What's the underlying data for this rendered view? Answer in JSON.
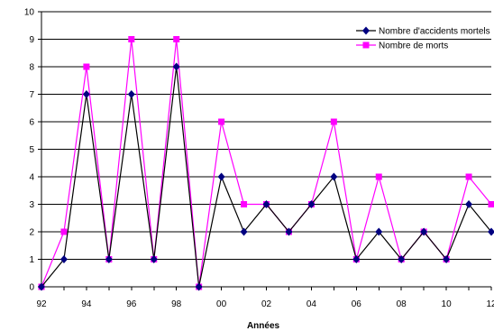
{
  "chart_data": {
    "type": "line",
    "title": "",
    "xlabel": "Années",
    "ylabel": "",
    "x": [
      "92",
      "93",
      "94",
      "95",
      "96",
      "97",
      "98",
      "99",
      "00",
      "01",
      "02",
      "03",
      "04",
      "05",
      "06",
      "07",
      "08",
      "09",
      "10",
      "11",
      "12"
    ],
    "x_tick_labels": [
      "92",
      "94",
      "96",
      "98",
      "00",
      "02",
      "04",
      "06",
      "08",
      "10",
      "12"
    ],
    "ylim": [
      0,
      10
    ],
    "y_ticks": [
      "0",
      "1",
      "2",
      "3",
      "4",
      "5",
      "6",
      "7",
      "8",
      "9",
      "10"
    ],
    "grid": "horizontal",
    "legend_position": "top-right",
    "series": [
      {
        "name": "Nombre d'accidents mortels",
        "values": [
          0,
          1,
          7,
          1,
          7,
          1,
          8,
          0,
          4,
          2,
          3,
          2,
          3,
          4,
          1,
          2,
          1,
          2,
          1,
          3,
          2
        ],
        "color": "#000080",
        "line_color": "#000000",
        "marker": "diamond"
      },
      {
        "name": "Nombre de morts",
        "values": [
          0,
          2,
          8,
          1,
          9,
          1,
          9,
          0,
          6,
          3,
          3,
          2,
          3,
          6,
          1,
          4,
          1,
          2,
          1,
          4,
          3
        ],
        "color": "#ff00ff",
        "line_color": "#ff00ff",
        "marker": "square"
      }
    ]
  }
}
